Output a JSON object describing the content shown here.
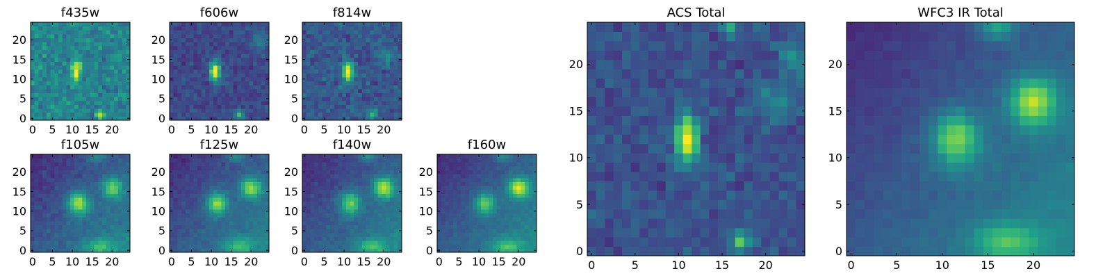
{
  "chart_data": [
    {
      "type": "heatmap",
      "title": "f435w",
      "colormap": "viridis",
      "origin": "lower",
      "xlim": [
        -0.5,
        24.5
      ],
      "ylim": [
        -0.5,
        24.5
      ],
      "xticks": [
        0,
        5,
        10,
        15,
        20
      ],
      "yticks": [
        0,
        5,
        10,
        15,
        20
      ],
      "model": {
        "background": 0.45,
        "noise": 0.13,
        "gradient": 0,
        "sources": [
          {
            "x": 11,
            "y": 12,
            "amp": 0.6,
            "sx": 0.9,
            "sy": 1.8
          },
          {
            "x": 17,
            "y": 1,
            "amp": 0.45,
            "sx": 0.8,
            "sy": 0.8
          }
        ]
      }
    },
    {
      "type": "heatmap",
      "title": "f606w",
      "colormap": "viridis",
      "origin": "lower",
      "xlim": [
        -0.5,
        24.5
      ],
      "ylim": [
        -0.5,
        24.5
      ],
      "xticks": [
        0,
        5,
        10,
        15,
        20
      ],
      "yticks": [
        0,
        5,
        10,
        15,
        20
      ],
      "model": {
        "background": 0.22,
        "noise": 0.09,
        "gradient": 0,
        "sources": [
          {
            "x": 11,
            "y": 12,
            "amp": 0.85,
            "sx": 0.9,
            "sy": 1.8
          },
          {
            "x": 17,
            "y": 1,
            "amp": 0.5,
            "sx": 0.8,
            "sy": 0.8
          },
          {
            "x": 22,
            "y": 20,
            "amp": 0.2,
            "sx": 1.5,
            "sy": 2
          }
        ]
      }
    },
    {
      "type": "heatmap",
      "title": "f814w",
      "colormap": "viridis",
      "origin": "lower",
      "xlim": [
        -0.5,
        24.5
      ],
      "ylim": [
        -0.5,
        24.5
      ],
      "xticks": [
        0,
        5,
        10,
        15,
        20
      ],
      "yticks": [
        0,
        5,
        10,
        15,
        20
      ],
      "model": {
        "background": 0.28,
        "noise": 0.11,
        "gradient": 0,
        "sources": [
          {
            "x": 11,
            "y": 12,
            "amp": 0.75,
            "sx": 0.9,
            "sy": 1.8
          },
          {
            "x": 17,
            "y": 1,
            "amp": 0.45,
            "sx": 0.8,
            "sy": 0.8
          },
          {
            "x": 21,
            "y": 16,
            "amp": 0.2,
            "sx": 1.5,
            "sy": 1.5
          }
        ]
      }
    },
    {
      "type": "heatmap",
      "title": "f105w",
      "colormap": "viridis",
      "origin": "lower",
      "xlim": [
        -0.5,
        24.5
      ],
      "ylim": [
        -0.5,
        24.5
      ],
      "xticks": [
        0,
        5,
        10,
        15,
        20
      ],
      "yticks": [
        0,
        5,
        10,
        15,
        20
      ],
      "model": {
        "background": 0.12,
        "noise": 0.06,
        "gradient": 0.35,
        "sources": [
          {
            "x": 11.5,
            "y": 12,
            "amp": 0.6,
            "sx": 1.8,
            "sy": 2
          },
          {
            "x": 20,
            "y": 16,
            "amp": 0.45,
            "sx": 1.8,
            "sy": 1.8
          },
          {
            "x": 17,
            "y": 1,
            "amp": 0.3,
            "sx": 2.5,
            "sy": 1.5
          },
          {
            "x": 16,
            "y": 24,
            "amp": 0.25,
            "sx": 1.5,
            "sy": 1
          }
        ]
      }
    },
    {
      "type": "heatmap",
      "title": "f125w",
      "colormap": "viridis",
      "origin": "lower",
      "xlim": [
        -0.5,
        24.5
      ],
      "ylim": [
        -0.5,
        24.5
      ],
      "xticks": [
        0,
        5,
        10,
        15,
        20
      ],
      "yticks": [
        0,
        5,
        10,
        15,
        20
      ],
      "model": {
        "background": 0.12,
        "noise": 0.05,
        "gradient": 0.35,
        "sources": [
          {
            "x": 11.5,
            "y": 12,
            "amp": 0.55,
            "sx": 1.8,
            "sy": 2
          },
          {
            "x": 20,
            "y": 16,
            "amp": 0.52,
            "sx": 1.8,
            "sy": 1.8
          },
          {
            "x": 17,
            "y": 1,
            "amp": 0.3,
            "sx": 2.5,
            "sy": 1.5
          },
          {
            "x": 16,
            "y": 24,
            "amp": 0.25,
            "sx": 1.5,
            "sy": 1
          }
        ]
      }
    },
    {
      "type": "heatmap",
      "title": "f140w",
      "colormap": "viridis",
      "origin": "lower",
      "xlim": [
        -0.5,
        24.5
      ],
      "ylim": [
        -0.5,
        24.5
      ],
      "xticks": [
        0,
        5,
        10,
        15,
        20
      ],
      "yticks": [
        0,
        5,
        10,
        15,
        20
      ],
      "model": {
        "background": 0.12,
        "noise": 0.05,
        "gradient": 0.35,
        "sources": [
          {
            "x": 11.5,
            "y": 12,
            "amp": 0.5,
            "sx": 1.8,
            "sy": 2
          },
          {
            "x": 20,
            "y": 16,
            "amp": 0.56,
            "sx": 1.8,
            "sy": 1.8
          },
          {
            "x": 17,
            "y": 1,
            "amp": 0.3,
            "sx": 2.5,
            "sy": 1.5
          },
          {
            "x": 16,
            "y": 24,
            "amp": 0.25,
            "sx": 1.5,
            "sy": 1
          }
        ]
      }
    },
    {
      "type": "heatmap",
      "title": "f160w",
      "colormap": "viridis",
      "origin": "lower",
      "xlim": [
        -0.5,
        24.5
      ],
      "ylim": [
        -0.5,
        24.5
      ],
      "xticks": [
        0,
        5,
        10,
        15,
        20
      ],
      "yticks": [
        0,
        5,
        10,
        15,
        20
      ],
      "model": {
        "background": 0.12,
        "noise": 0.04,
        "gradient": 0.38,
        "sources": [
          {
            "x": 11.5,
            "y": 12,
            "amp": 0.45,
            "sx": 1.8,
            "sy": 2
          },
          {
            "x": 20,
            "y": 16,
            "amp": 0.6,
            "sx": 1.8,
            "sy": 1.8
          },
          {
            "x": 17,
            "y": 1,
            "amp": 0.3,
            "sx": 2.5,
            "sy": 1.5
          },
          {
            "x": 16,
            "y": 24,
            "amp": 0.25,
            "sx": 1.5,
            "sy": 1
          }
        ]
      }
    },
    {
      "type": "heatmap",
      "title": "ACS Total",
      "colormap": "viridis",
      "origin": "lower",
      "xlim": [
        -0.5,
        24.5
      ],
      "ylim": [
        -0.5,
        24.5
      ],
      "xticks": [
        0,
        5,
        10,
        15,
        20
      ],
      "yticks": [
        0,
        5,
        10,
        15,
        20
      ],
      "model": {
        "background": 0.25,
        "noise": 0.09,
        "gradient": 0,
        "sources": [
          {
            "x": 11,
            "y": 12,
            "amp": 0.8,
            "sx": 0.9,
            "sy": 1.8
          },
          {
            "x": 17,
            "y": 1,
            "amp": 0.5,
            "sx": 0.8,
            "sy": 0.8
          },
          {
            "x": 21,
            "y": 16,
            "amp": 0.2,
            "sx": 1.5,
            "sy": 1.5
          },
          {
            "x": 23,
            "y": 21,
            "amp": 0.22,
            "sx": 1,
            "sy": 1.5
          },
          {
            "x": 16,
            "y": 24,
            "amp": 0.3,
            "sx": 0.7,
            "sy": 0.7
          }
        ]
      }
    },
    {
      "type": "heatmap",
      "title": "WFC3 IR Total",
      "colormap": "viridis",
      "origin": "lower",
      "xlim": [
        -0.5,
        24.5
      ],
      "ylim": [
        -0.5,
        24.5
      ],
      "xticks": [
        0,
        5,
        10,
        15,
        20
      ],
      "yticks": [
        0,
        5,
        10,
        15,
        20
      ],
      "model": {
        "background": 0.12,
        "noise": 0.03,
        "gradient": 0.36,
        "sources": [
          {
            "x": 11.5,
            "y": 12,
            "amp": 0.52,
            "sx": 1.8,
            "sy": 2
          },
          {
            "x": 20,
            "y": 16,
            "amp": 0.56,
            "sx": 1.8,
            "sy": 1.8
          },
          {
            "x": 17,
            "y": 1,
            "amp": 0.32,
            "sx": 2.5,
            "sy": 1.5
          },
          {
            "x": 16,
            "y": 24,
            "amp": 0.3,
            "sx": 1.5,
            "sy": 1
          }
        ]
      }
    }
  ]
}
